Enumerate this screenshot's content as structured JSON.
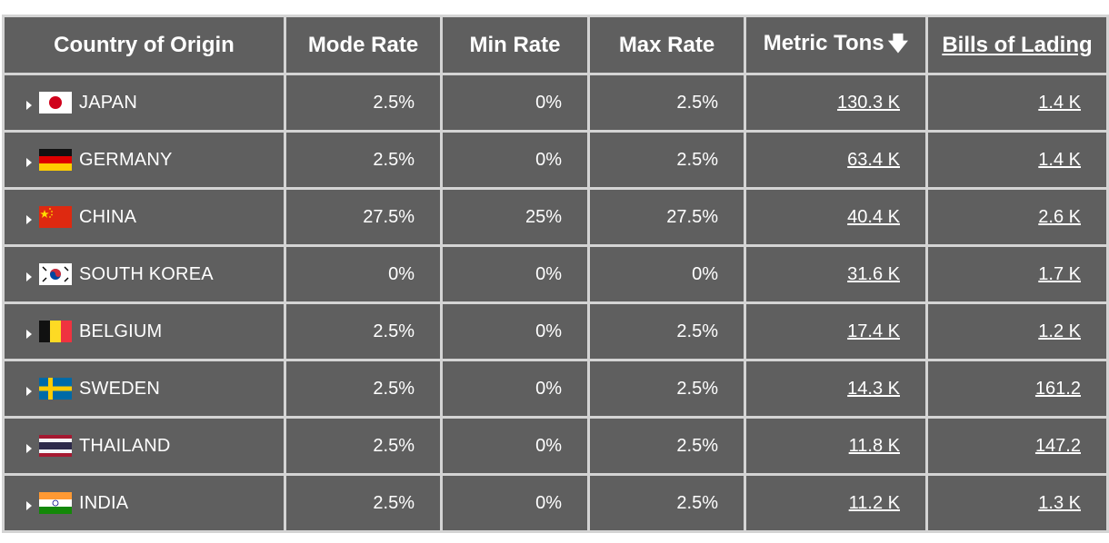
{
  "headers": {
    "country": "Country of Origin",
    "mode_rate": "Mode Rate",
    "min_rate": "Min Rate",
    "max_rate": "Max Rate",
    "metric_tons": "Metric Tons",
    "sort_icon": "arrow-down-icon",
    "bills_of_lading": "Bills of Lading"
  },
  "rows": [
    {
      "country": "JAPAN",
      "flag": "japan-flag-icon",
      "mode_rate": "2.5%",
      "min_rate": "0%",
      "max_rate": "2.5%",
      "metric_tons": "130.3 K",
      "bills_of_lading": "1.4 K"
    },
    {
      "country": "GERMANY",
      "flag": "germany-flag-icon",
      "mode_rate": "2.5%",
      "min_rate": "0%",
      "max_rate": "2.5%",
      "metric_tons": "63.4 K",
      "bills_of_lading": "1.4 K"
    },
    {
      "country": "CHINA",
      "flag": "china-flag-icon",
      "mode_rate": "27.5%",
      "min_rate": "25%",
      "max_rate": "27.5%",
      "metric_tons": "40.4 K",
      "bills_of_lading": "2.6 K"
    },
    {
      "country": "SOUTH KOREA",
      "flag": "south-korea-flag-icon",
      "mode_rate": "0%",
      "min_rate": "0%",
      "max_rate": "0%",
      "metric_tons": "31.6 K",
      "bills_of_lading": "1.7 K"
    },
    {
      "country": "BELGIUM",
      "flag": "belgium-flag-icon",
      "mode_rate": "2.5%",
      "min_rate": "0%",
      "max_rate": "2.5%",
      "metric_tons": "17.4 K",
      "bills_of_lading": "1.2 K"
    },
    {
      "country": "SWEDEN",
      "flag": "sweden-flag-icon",
      "mode_rate": "2.5%",
      "min_rate": "0%",
      "max_rate": "2.5%",
      "metric_tons": "14.3 K",
      "bills_of_lading": "161.2"
    },
    {
      "country": "THAILAND",
      "flag": "thailand-flag-icon",
      "mode_rate": "2.5%",
      "min_rate": "0%",
      "max_rate": "2.5%",
      "metric_tons": "11.8 K",
      "bills_of_lading": "147.2"
    },
    {
      "country": "INDIA",
      "flag": "india-flag-icon",
      "mode_rate": "2.5%",
      "min_rate": "0%",
      "max_rate": "2.5%",
      "metric_tons": "11.2 K",
      "bills_of_lading": "1.3 K"
    }
  ],
  "colors": {
    "cell_bg": "#5f5f5f",
    "grid": "#d4d4d4",
    "text": "#ffffff"
  }
}
